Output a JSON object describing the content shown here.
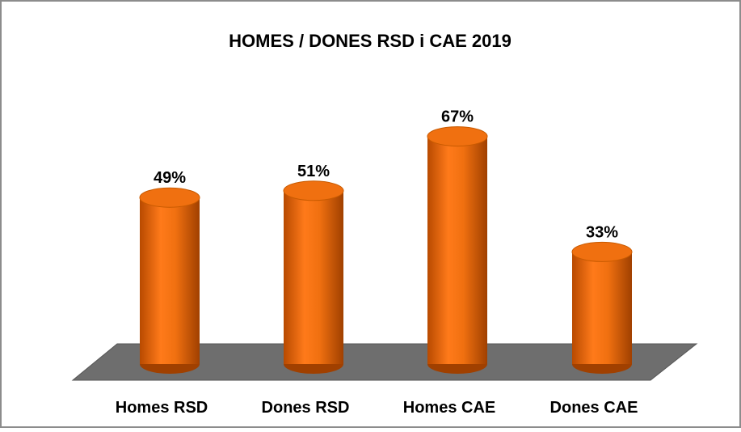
{
  "chart_data": {
    "type": "bar",
    "title": "HOMES / DONES RSD i CAE 2019",
    "categories": [
      "Homes RSD",
      "Dones RSD",
      "Homes CAE",
      "Dones CAE"
    ],
    "values": [
      49,
      51,
      67,
      33
    ],
    "value_labels": [
      "49%",
      "51%",
      "67%",
      "33%"
    ],
    "color": "#f07010"
  }
}
